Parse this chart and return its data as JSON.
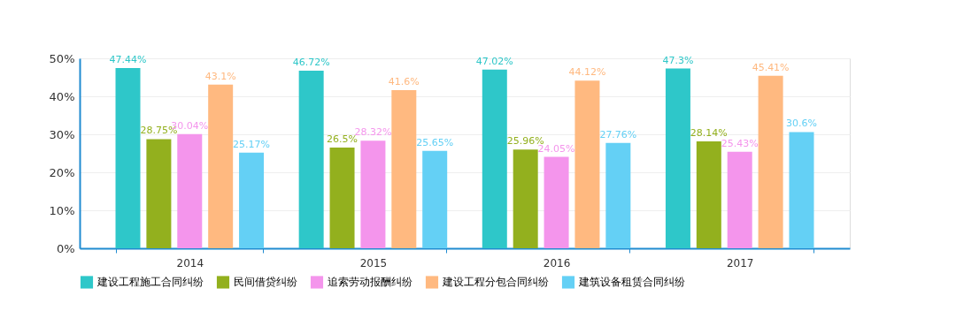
{
  "chart_data": {
    "type": "bar",
    "categories": [
      "2014",
      "2015",
      "2016",
      "2017"
    ],
    "series": [
      {
        "name": "建设工程施工合同纠纷",
        "color": "#2ec7c9",
        "values": [
          47.44,
          46.72,
          47.02,
          47.3
        ],
        "value_labels": [
          "47.44%",
          "46.72%",
          "47.02%",
          "47.3%"
        ]
      },
      {
        "name": "民间借贷纠纷",
        "color": "#93b01e",
        "values": [
          28.75,
          26.5,
          25.96,
          28.14
        ],
        "value_labels": [
          "28.75%",
          "26.5%",
          "25.96%",
          "28.14%"
        ]
      },
      {
        "name": "追索劳动报酬纠纷",
        "color": "#f495ec",
        "values": [
          30.04,
          28.32,
          24.05,
          25.43
        ],
        "value_labels": [
          "30.04%",
          "28.32%",
          "24.05%",
          "25.43%"
        ]
      },
      {
        "name": "建设工程分包合同纠纷",
        "color": "#ffb980",
        "values": [
          43.1,
          41.6,
          44.12,
          45.41
        ],
        "value_labels": [
          "43.1%",
          "41.6%",
          "44.12%",
          "45.41%"
        ]
      },
      {
        "name": "建筑设备租赁合同纠纷",
        "color": "#64d0f5",
        "values": [
          25.17,
          25.65,
          27.76,
          30.6
        ],
        "value_labels": [
          "25.17%",
          "25.65%",
          "27.76%",
          "30.6%"
        ]
      }
    ],
    "ylim": [
      0,
      50
    ],
    "yticks": [
      {
        "value": 0,
        "label": "0%"
      },
      {
        "value": 10,
        "label": "10%"
      },
      {
        "value": 20,
        "label": "20%"
      },
      {
        "value": 30,
        "label": "30%"
      },
      {
        "value": 40,
        "label": "40%"
      },
      {
        "value": 50,
        "label": "50%"
      }
    ],
    "grid": "y",
    "legend": "bottom"
  }
}
